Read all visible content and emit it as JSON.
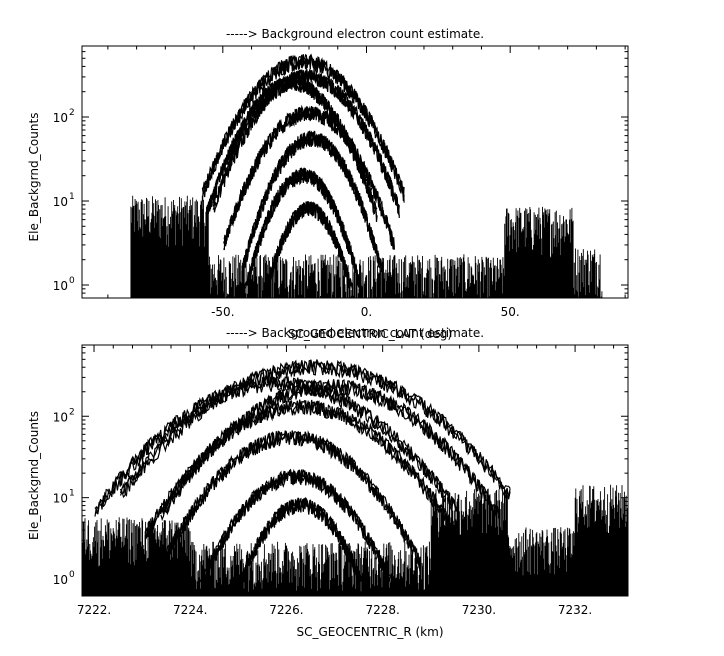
{
  "figure": {
    "background": "#ffffff",
    "ink": "#000000"
  },
  "chart_data": [
    {
      "type": "line",
      "title": "-----> Background electron count estimate.",
      "xlabel": "SC_GEOCENTRIC_LAT (deg)",
      "ylabel": "Ele_Backgrnd_Counts",
      "x_scale": "linear",
      "y_scale": "log",
      "xlim": [
        -99,
        91
      ],
      "ylim": [
        0.7,
        700
      ],
      "xticks": [
        -50,
        0,
        50
      ],
      "xtick_labels": [
        "-50.",
        "0.",
        "50."
      ],
      "yticks": [
        1,
        10,
        100
      ],
      "ytick_labels": [
        {
          "base": "10",
          "exp": "0"
        },
        {
          "base": "10",
          "exp": "1"
        },
        {
          "base": "10",
          "exp": "2"
        }
      ],
      "grid": false,
      "legend": "none",
      "data_extent_x": [
        -82,
        82
      ],
      "noise_regions": [
        {
          "x_range": [
            -82,
            -55
          ],
          "level": 8
        },
        {
          "x_range": [
            -55,
            40
          ],
          "level": 1.6
        },
        {
          "x_range": [
            48,
            72
          ],
          "level": 6
        },
        {
          "x_range": [
            72,
            82
          ],
          "level": 2
        }
      ],
      "series": [
        {
          "center": -22,
          "width": 13,
          "peak": 450
        },
        {
          "center": -21,
          "width": 12,
          "peak": 300
        },
        {
          "center": -26,
          "width": 11,
          "peak": 250
        },
        {
          "center": -20,
          "width": 11,
          "peak": 110
        },
        {
          "center": -19,
          "width": 9,
          "peak": 55
        },
        {
          "center": -22,
          "width": 8,
          "peak": 20
        },
        {
          "center": -20,
          "width": 7,
          "peak": 8
        }
      ]
    },
    {
      "type": "line",
      "title": "-----> Background electron count estimate.",
      "xlabel": "SC_GEOCENTRIC_R (km)",
      "ylabel": "Ele_Backgrnd_Counts",
      "x_scale": "linear",
      "y_scale": "log",
      "xlim": [
        7221.75,
        7233.1
      ],
      "ylim": [
        0.62,
        750
      ],
      "xticks": [
        7222,
        7224,
        7226,
        7228,
        7230,
        7232
      ],
      "xtick_labels": [
        "7222.",
        "7224.",
        "7226.",
        "7228.",
        "7230.",
        "7232."
      ],
      "yticks": [
        1,
        10,
        100
      ],
      "ytick_labels": [
        {
          "base": "10",
          "exp": "0"
        },
        {
          "base": "10",
          "exp": "1"
        },
        {
          "base": "10",
          "exp": "2"
        }
      ],
      "grid": false,
      "legend": "none",
      "data_extent_x": [
        7221.75,
        7233.1
      ],
      "noise_regions": [
        {
          "x_range": [
            7221.75,
            7224
          ],
          "level": 4
        },
        {
          "x_range": [
            7224,
            7229
          ],
          "level": 2
        },
        {
          "x_range": [
            7229,
            7230.6
          ],
          "level": 9
        },
        {
          "x_range": [
            7230.6,
            7232
          ],
          "level": 3
        },
        {
          "x_range": [
            7232,
            7233.1
          ],
          "level": 10
        }
      ],
      "series": [
        {
          "center": 7226.6,
          "width": 1.5,
          "peak": 400
        },
        {
          "center": 7225.8,
          "width": 1.4,
          "peak": 250
        },
        {
          "center": 7226.9,
          "width": 1.3,
          "peak": 230
        },
        {
          "center": 7226.3,
          "width": 1.2,
          "peak": 130
        },
        {
          "center": 7226.1,
          "width": 1.0,
          "peak": 55
        },
        {
          "center": 7226.2,
          "width": 0.8,
          "peak": 18
        },
        {
          "center": 7226.3,
          "width": 0.6,
          "peak": 8
        }
      ]
    }
  ]
}
